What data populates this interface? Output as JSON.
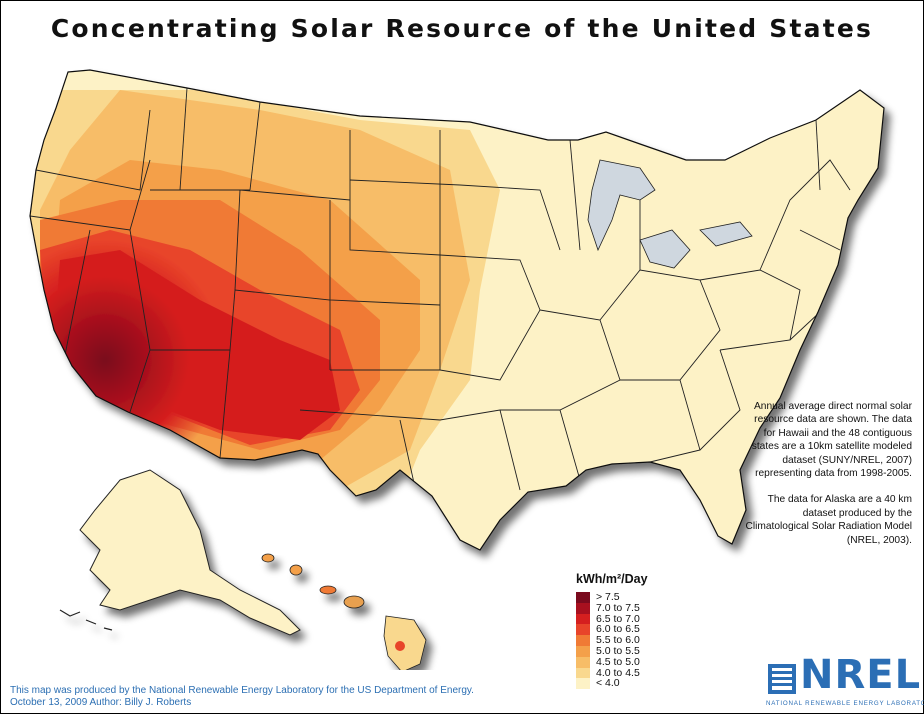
{
  "title": "Concentrating Solar Resource of the United States",
  "notes": {
    "paragraph_1": "Annual average direct normal solar resource data are shown. The data for Hawaii and the 48 contiguous states are a 10km satellite modeled dataset (SUNY/NREL, 2007) representing data from 1998-2005.",
    "paragraph_2": "The data for Alaska are a 40 km dataset produced by the Climatological Solar Radiation Model (NREL, 2003)."
  },
  "legend": {
    "title": "kWh/m²/Day",
    "items": [
      {
        "label": "> 7.5",
        "color": "#7a0a1e"
      },
      {
        "label": "7.0 to 7.5",
        "color": "#a8101f"
      },
      {
        "label": "6.5 to 7.0",
        "color": "#d51f1f"
      },
      {
        "label": "6.0 to 6.5",
        "color": "#e8442a"
      },
      {
        "label": "5.5 to 6.0",
        "color": "#f07a35"
      },
      {
        "label": "5.0 to 5.5",
        "color": "#f4a04a"
      },
      {
        "label": "4.5 to 5.0",
        "color": "#f7bd67"
      },
      {
        "label": "4.0 to 4.5",
        "color": "#f9d88e"
      },
      {
        "label": "< 4.0",
        "color": "#fdf2c6"
      }
    ]
  },
  "credit": {
    "line_1": "This map was produced by the National Renewable Energy Laboratory for the US Department of Energy.",
    "line_2": "October 13, 2009 Author: Billy J. Roberts"
  },
  "logo": {
    "name": "NREL",
    "tagline": "NATIONAL RENEWABLE ENERGY LABORATORY",
    "color": "#2b6eb5"
  }
}
